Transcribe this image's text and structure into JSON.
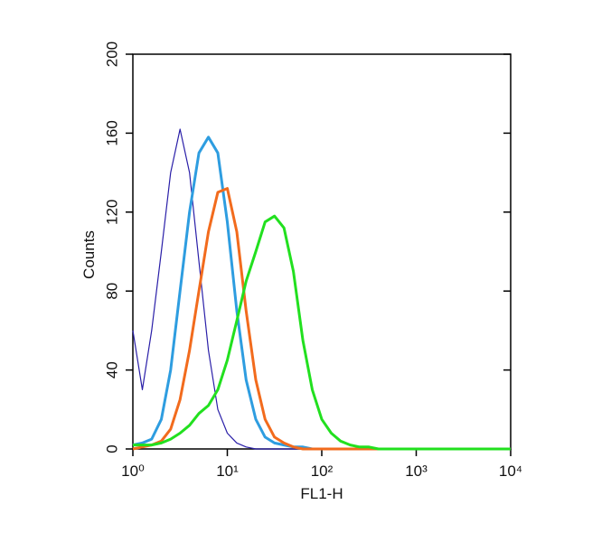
{
  "chart_data": {
    "type": "line",
    "x_label": "FL1-H",
    "y_label": "Counts",
    "x_log": true,
    "xlim": [
      1,
      10000
    ],
    "xticks": [
      {
        "value": 1,
        "label": "10⁰"
      },
      {
        "value": 10,
        "label": "10¹"
      },
      {
        "value": 100,
        "label": "10²"
      },
      {
        "value": 1000,
        "label": "10³"
      },
      {
        "value": 10000,
        "label": "10⁴"
      }
    ],
    "ylim": [
      0,
      200
    ],
    "yticks": [
      0,
      40,
      80,
      120,
      160,
      200
    ],
    "x": [
      1,
      1.26,
      1.58,
      2,
      2.51,
      3.16,
      3.98,
      5.01,
      6.31,
      7.94,
      10,
      12.6,
      15.8,
      20,
      25.1,
      31.6,
      39.8,
      50.1,
      63.1,
      79.4,
      100,
      126,
      158,
      200,
      251,
      316,
      398,
      501,
      631,
      794,
      1000,
      10000
    ],
    "series": [
      {
        "color": "#2a1fa8",
        "width": 1.2,
        "values": [
          60,
          30,
          60,
          100,
          140,
          162,
          140,
          95,
          50,
          20,
          8,
          3,
          1,
          0,
          0,
          0,
          0,
          0,
          0,
          0,
          0,
          0,
          0,
          0,
          0,
          0,
          0,
          0,
          0,
          0,
          0,
          0
        ]
      },
      {
        "color": "#2e9de0",
        "width": 3,
        "values": [
          2,
          3,
          5,
          15,
          40,
          80,
          120,
          150,
          158,
          150,
          115,
          70,
          35,
          15,
          6,
          3,
          2,
          1,
          1,
          0,
          0,
          0,
          0,
          0,
          0,
          0,
          0,
          0,
          0,
          0,
          0,
          0
        ]
      },
      {
        "color": "#f26b1d",
        "width": 3,
        "values": [
          0,
          1,
          2,
          4,
          10,
          25,
          50,
          80,
          110,
          130,
          132,
          110,
          70,
          35,
          15,
          6,
          3,
          1,
          0,
          0,
          0,
          0,
          0,
          0,
          0,
          0,
          0,
          0,
          0,
          0,
          0,
          0
        ]
      },
      {
        "color": "#22e01f",
        "width": 3,
        "values": [
          2,
          2,
          2,
          3,
          5,
          8,
          12,
          18,
          22,
          30,
          45,
          65,
          85,
          100,
          115,
          118,
          112,
          90,
          55,
          30,
          15,
          8,
          4,
          2,
          1,
          1,
          0,
          0,
          0,
          0,
          0,
          0
        ]
      }
    ]
  }
}
